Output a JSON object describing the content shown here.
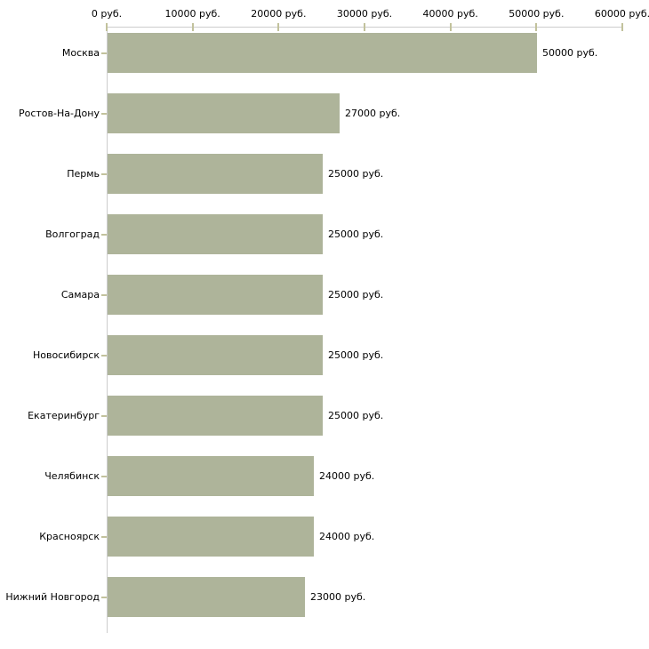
{
  "chart_data": {
    "type": "bar",
    "orientation": "horizontal",
    "title": "",
    "xlabel": "",
    "ylabel": "",
    "unit": "руб.",
    "xlim": [
      0,
      60000
    ],
    "grid": false,
    "legend": "none",
    "categories": [
      "Москва",
      "Ростов-На-Дону",
      "Пермь",
      "Волгоград",
      "Самара",
      "Новосибирск",
      "Екатеринбург",
      "Челябинск",
      "Красноярск",
      "Нижний Новгород"
    ],
    "values": [
      50000,
      27000,
      25000,
      25000,
      25000,
      25000,
      25000,
      24000,
      24000,
      23000
    ],
    "value_labels": [
      "50000 руб.",
      "27000 руб.",
      "25000 руб.",
      "25000 руб.",
      "25000 руб.",
      "25000 руб.",
      "25000 руб.",
      "24000 руб.",
      "24000 руб.",
      "23000 руб."
    ],
    "x_ticks": [
      {
        "value": 0,
        "label": "0 руб."
      },
      {
        "value": 10000,
        "label": "10000 руб."
      },
      {
        "value": 20000,
        "label": "20000 руб."
      },
      {
        "value": 30000,
        "label": "30000 руб."
      },
      {
        "value": 40000,
        "label": "40000 руб."
      },
      {
        "value": 50000,
        "label": "50000 руб."
      },
      {
        "value": 60000,
        "label": "60000 руб."
      }
    ],
    "colors": {
      "bar": "#aeb49a",
      "axis_line": "#cccccc",
      "tick": "#c2c29c",
      "text": "#000000",
      "background": "#ffffff"
    }
  }
}
